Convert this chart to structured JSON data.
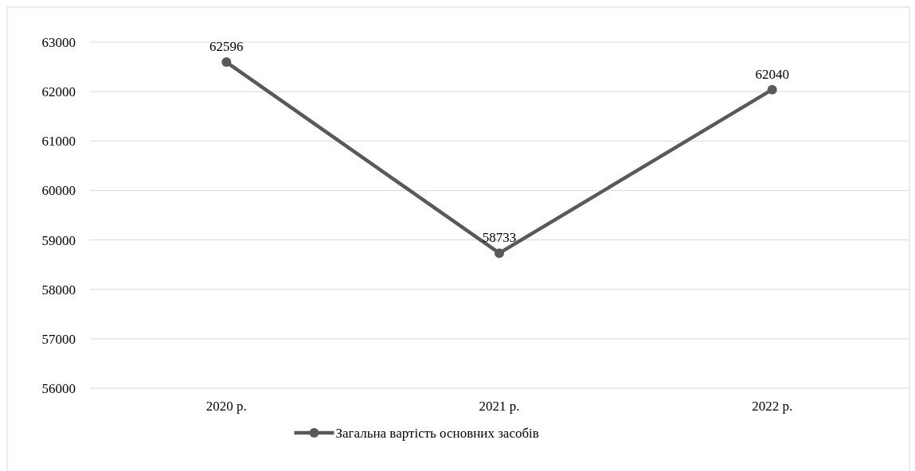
{
  "chart_data": {
    "type": "line",
    "categories": [
      "2020 р.",
      "2021 р.",
      "2022 р."
    ],
    "series": [
      {
        "name": "Загальна вартість основних засобів",
        "color": "#595959",
        "values": [
          62596,
          58733,
          62040
        ]
      }
    ],
    "ylim": [
      56000,
      63000
    ],
    "yticks": [
      56000,
      57000,
      58000,
      59000,
      60000,
      61000,
      62000,
      63000
    ],
    "grid": "y",
    "legend": "bottom",
    "marker": "circle",
    "line_style": "solid",
    "data_labels": true
  }
}
